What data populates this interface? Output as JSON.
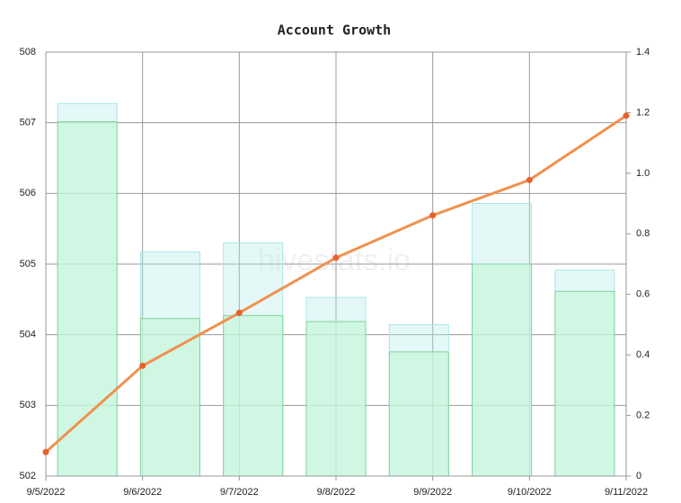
{
  "chart_data": {
    "type": "bar",
    "title": "Account Growth",
    "watermark": "hivestats.io",
    "x": [
      "9/5/2022",
      "9/6/2022",
      "9/7/2022",
      "9/8/2022",
      "9/9/2022",
      "9/10/2022",
      "9/11/2022"
    ],
    "series": [
      {
        "type": "bar",
        "axis": "y2",
        "color": "#a8e6e6",
        "values": [
          1.23,
          0.74,
          0.77,
          0.59,
          0.5,
          0.9,
          0.68
        ]
      },
      {
        "type": "bar",
        "axis": "y2",
        "color": "#7fd39b",
        "values": [
          1.17,
          0.52,
          0.53,
          0.51,
          0.41,
          0.7,
          0.61
        ]
      },
      {
        "type": "line",
        "axis": "y",
        "color": "#f0914f",
        "values": [
          502.34,
          503.56,
          504.31,
          505.09,
          505.69,
          506.19,
          507.1
        ]
      }
    ],
    "ylim": [
      502,
      508
    ],
    "yticks": [
      502,
      503,
      504,
      505,
      506,
      507,
      508
    ],
    "y2lim": [
      0,
      1.4
    ],
    "y2ticks": [
      0,
      0.2,
      0.4,
      0.6,
      0.8,
      {
        "value": 1,
        "label": "1.0"
      },
      1.2,
      1.4
    ],
    "grid": true
  }
}
